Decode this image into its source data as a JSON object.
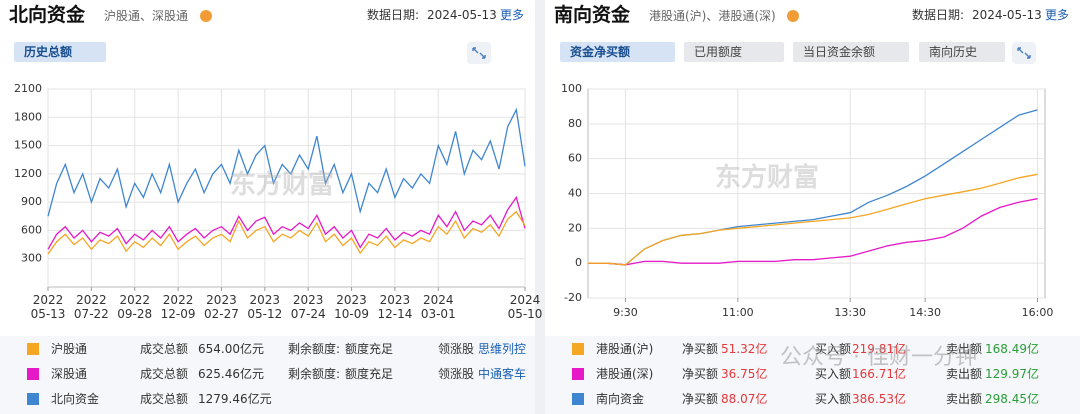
{
  "chart_data": [
    {
      "type": "line",
      "title": "北向资金",
      "subtitle": "沪股通、深股通",
      "date_label": "数据日期:",
      "date": "2024-05-13",
      "more": "更多",
      "tabs": [
        "历史总额"
      ],
      "grid": true,
      "xlim": [
        0,
        55
      ],
      "xticks": [
        {
          "value": 0,
          "label": "2022\n05-13"
        },
        {
          "value": 5,
          "label": "2022\n07-22"
        },
        {
          "value": 10,
          "label": "2022\n09-28"
        },
        {
          "value": 15,
          "label": "2022\n12-09"
        },
        {
          "value": 20,
          "label": "2023\n02-27"
        },
        {
          "value": 25,
          "label": "2023\n05-12"
        },
        {
          "value": 30,
          "label": "2023\n07-24"
        },
        {
          "value": 35,
          "label": "2023\n10-09"
        },
        {
          "value": 40,
          "label": "2023\n12-14"
        },
        {
          "value": 45,
          "label": "2024\n03-01"
        },
        {
          "value": 55,
          "label": "2024\n05-10"
        }
      ],
      "ylim": [
        0,
        2100
      ],
      "yticks": [
        300,
        600,
        900,
        1200,
        1500,
        1800,
        2100
      ],
      "series": [
        {
          "name": "沪股通",
          "color": "#f5a623",
          "values": [
            350,
            480,
            560,
            450,
            520,
            400,
            500,
            460,
            540,
            380,
            480,
            420,
            520,
            440,
            560,
            400,
            480,
            540,
            440,
            520,
            560,
            480,
            700,
            520,
            600,
            640,
            480,
            560,
            520,
            600,
            540,
            680,
            480,
            560,
            440,
            520,
            360,
            480,
            440,
            540,
            420,
            500,
            460,
            520,
            480,
            640,
            560,
            700,
            520,
            620,
            580,
            660,
            540,
            720,
            800,
            650
          ]
        },
        {
          "name": "深股通",
          "color": "#e619c9",
          "values": [
            400,
            560,
            640,
            520,
            600,
            480,
            580,
            540,
            620,
            460,
            560,
            500,
            600,
            520,
            640,
            480,
            560,
            620,
            520,
            600,
            640,
            560,
            750,
            600,
            700,
            740,
            560,
            640,
            600,
            680,
            620,
            760,
            560,
            640,
            520,
            600,
            420,
            560,
            520,
            620,
            500,
            580,
            540,
            600,
            560,
            760,
            640,
            800,
            600,
            700,
            660,
            760,
            620,
            820,
            950,
            620
          ]
        },
        {
          "name": "北向资金",
          "color": "#3f86d0",
          "values": [
            750,
            1100,
            1300,
            1000,
            1200,
            900,
            1150,
            1050,
            1250,
            850,
            1100,
            950,
            1200,
            1000,
            1300,
            900,
            1100,
            1250,
            1000,
            1200,
            1300,
            1100,
            1450,
            1200,
            1400,
            1500,
            1100,
            1300,
            1200,
            1400,
            1250,
            1600,
            1100,
            1300,
            1000,
            1200,
            800,
            1100,
            1000,
            1250,
            950,
            1150,
            1050,
            1200,
            1100,
            1500,
            1300,
            1650,
            1200,
            1450,
            1350,
            1550,
            1250,
            1700,
            1880,
            1280
          ]
        }
      ]
    },
    {
      "type": "line",
      "title": "南向资金",
      "subtitle": "港股通(沪)、港股通(深)",
      "date_label": "数据日期:",
      "date": "2024-05-13",
      "more": "更多",
      "tabs": [
        "资金净买额",
        "已用额度",
        "当日资金余额",
        "南向历史"
      ],
      "grid": true,
      "xlim": [
        -30,
        336
      ],
      "xticks": [
        {
          "value": 0,
          "label": "9:30"
        },
        {
          "value": 90,
          "label": "11:00"
        },
        {
          "value": 180,
          "label": "13:30"
        },
        {
          "value": 240,
          "label": "14:30"
        },
        {
          "value": 330,
          "label": "16:00"
        }
      ],
      "ylim": [
        -20,
        100
      ],
      "yticks": [
        -20,
        0,
        20,
        40,
        60,
        80,
        100
      ],
      "x": [
        -30,
        -15,
        0,
        15,
        30,
        45,
        60,
        75,
        90,
        105,
        120,
        135,
        150,
        165,
        180,
        195,
        210,
        225,
        240,
        255,
        270,
        285,
        300,
        315,
        330
      ],
      "series": [
        {
          "name": "港股通(沪)",
          "color": "#f5a623",
          "values": [
            0,
            0,
            -1,
            8,
            13,
            16,
            17,
            19,
            20,
            21,
            22,
            23,
            24,
            25,
            26,
            28,
            31,
            34,
            37,
            39,
            41,
            43,
            46,
            49,
            51
          ]
        },
        {
          "name": "港股通(深)",
          "color": "#e619c9",
          "values": [
            0,
            0,
            -1,
            1,
            1,
            0,
            0,
            0,
            1,
            1,
            1,
            2,
            2,
            3,
            4,
            7,
            10,
            12,
            13,
            15,
            20,
            27,
            32,
            35,
            37
          ]
        },
        {
          "name": "南向资金",
          "color": "#3f86d0",
          "values": [
            0,
            0,
            -1,
            8,
            13,
            16,
            17,
            19,
            21,
            22,
            23,
            24,
            25,
            27,
            29,
            35,
            39,
            44,
            50,
            57,
            64,
            71,
            78,
            85,
            88
          ]
        }
      ]
    }
  ],
  "tables": [
    {
      "rows": [
        {
          "c1": "成交总额",
          "v1": "654.00亿元",
          "c2": "剩余额度:",
          "v2": "额度充足",
          "c3": "领涨股",
          "v3": "思维列控"
        },
        {
          "c1": "成交总额",
          "v1": "625.46亿元",
          "c2": "剩余额度:",
          "v2": "额度充足",
          "c3": "领涨股",
          "v3": "中通客车"
        },
        {
          "c1": "成交总额",
          "v1": "1279.46亿元"
        }
      ]
    },
    {
      "rows": [
        {
          "c1": "净买额",
          "v1": "51.32亿",
          "c2": "买入额",
          "v2": "219.81亿",
          "c3": "卖出额",
          "v3": "168.49亿"
        },
        {
          "c1": "净买额",
          "v1": "36.75亿",
          "c2": "买入额",
          "v2": "166.71亿",
          "c3": "卖出额",
          "v3": "129.97亿"
        },
        {
          "c1": "净买额",
          "v1": "88.07亿",
          "c2": "买入额",
          "v2": "386.53亿",
          "c3": "卖出额",
          "v3": "298.45亿"
        }
      ]
    }
  ],
  "watermarks": [
    "东方财富",
    "东方财富",
    "公众号 · 佳财一分钟"
  ]
}
